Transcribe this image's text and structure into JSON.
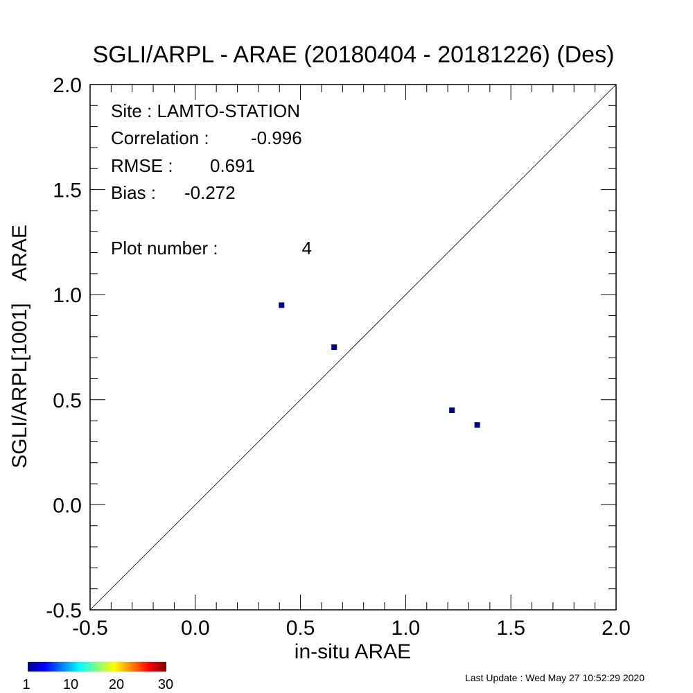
{
  "chart_data": {
    "type": "scatter",
    "title": "SGLI/ARPL - ARAE (20180404 - 20181226) (Des)",
    "xlabel": "in-situ ARAE",
    "ylabel": "SGLI/ARPL[1001]    ARAE",
    "xlim": [
      -0.5,
      2.0
    ],
    "ylim": [
      -0.5,
      2.0
    ],
    "x_ticks": [
      "-0.5",
      "0.0",
      "0.5",
      "1.0",
      "1.5",
      "2.0"
    ],
    "y_ticks": [
      "-0.5",
      "0.0",
      "0.5",
      "1.0",
      "1.5",
      "2.0"
    ],
    "reference_line": "1:1",
    "grid": false,
    "points": [
      {
        "x": 0.41,
        "y": 0.95
      },
      {
        "x": 0.66,
        "y": 0.75
      },
      {
        "x": 1.22,
        "y": 0.45
      },
      {
        "x": 1.34,
        "y": 0.38
      }
    ],
    "point_color": "#000080",
    "stats": [
      {
        "label": "Site : LAMTO-STATION",
        "value": ""
      },
      {
        "label": "Correlation :",
        "value": "-0.996"
      },
      {
        "label": "RMSE :",
        "value": "0.691"
      },
      {
        "label": "Bias :",
        "value": "-0.272"
      },
      {
        "label": "Plot number :",
        "value": "4"
      }
    ],
    "colorbar": {
      "tick_labels": [
        "1",
        "10",
        "20",
        "30"
      ],
      "colors": [
        "#00008f",
        "#0000ff",
        "#0080ff",
        "#00ffff",
        "#80ff80",
        "#ffff00",
        "#ff8000",
        "#ff0000",
        "#800000"
      ]
    }
  },
  "footer": {
    "last_update": "Last Update : Wed May 27 10:52:29 2020"
  }
}
